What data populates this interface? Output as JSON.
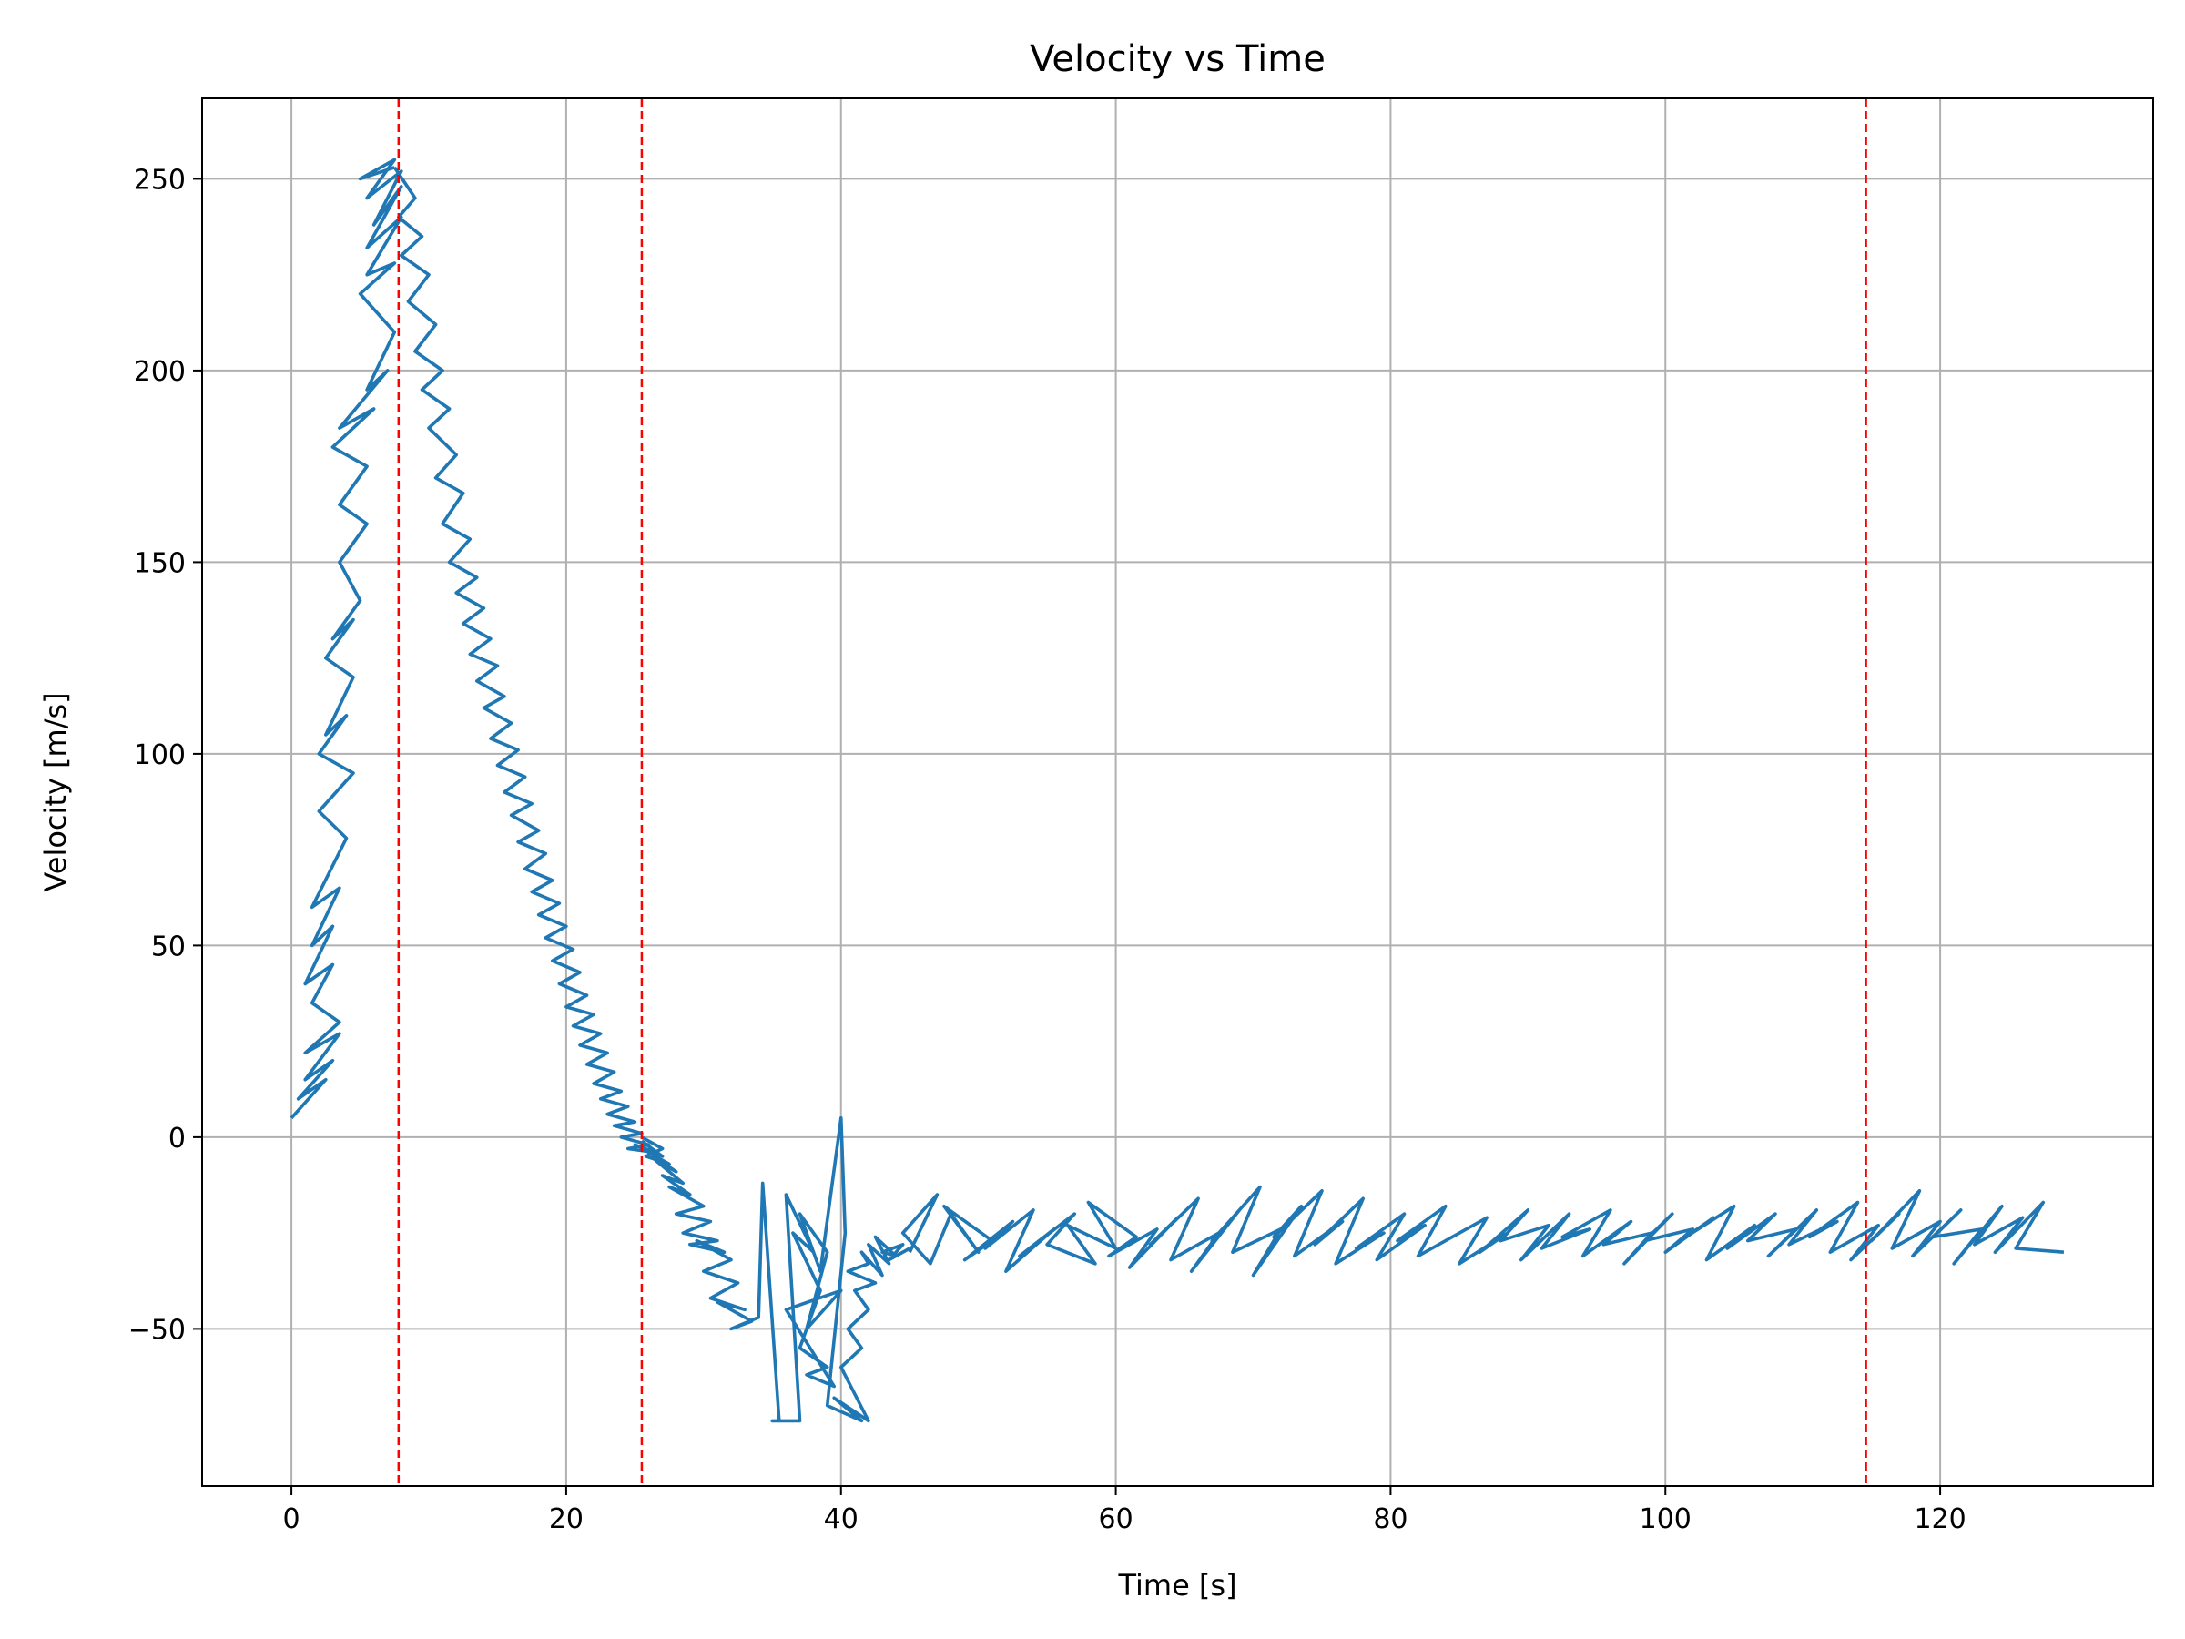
{
  "chart_data": {
    "type": "line",
    "title": "Velocity vs Time",
    "xlabel": "Time [s]",
    "ylabel": "Velocity [m/s]",
    "xlim": [
      -6.5,
      135.5
    ],
    "ylim": [
      -91,
      271
    ],
    "xticks": [
      0,
      20,
      40,
      60,
      80,
      100,
      120
    ],
    "yticks": [
      -50,
      0,
      50,
      100,
      150,
      200,
      250
    ],
    "xtick_labels": [
      "0",
      "20",
      "40",
      "60",
      "80",
      "100",
      "120"
    ],
    "ytick_labels": [
      "−50",
      "0",
      "50",
      "100",
      "150",
      "200",
      "250"
    ],
    "grid": true,
    "line_color": "#1f77b4",
    "vline_color": "#ff0000",
    "vlines": [
      7.8,
      25.5,
      114.6
    ],
    "series": [
      {
        "x": [
          0.0,
          2.5,
          0.5,
          3.0,
          1.0,
          3.5,
          1.0,
          3.5,
          1.5,
          3.0,
          1.0,
          3.0,
          1.5,
          3.5,
          1.5,
          4.0,
          2.0,
          4.5,
          2.0,
          4.0,
          2.5,
          4.5,
          2.5,
          4.5,
          3.0,
          5.0,
          3.5,
          5.5,
          3.5,
          5.5,
          3.0,
          6.0,
          3.5,
          7.0,
          5.5,
          7.5,
          5.0,
          7.5,
          5.5,
          8.0,
          5.5,
          8.0,
          6.0,
          8.0,
          5.5,
          7.5,
          5.0,
          7.5
        ],
        "y": [
          5,
          15,
          10,
          20,
          15,
          27,
          22,
          30,
          35,
          45,
          40,
          55,
          50,
          65,
          60,
          78,
          85,
          95,
          100,
          110,
          105,
          120,
          125,
          135,
          130,
          140,
          150,
          160,
          165,
          175,
          180,
          190,
          185,
          200,
          195,
          210,
          220,
          228,
          225,
          240,
          232,
          248,
          238,
          252,
          245,
          255,
          250,
          253
        ]
      },
      {
        "x": [
          7.5,
          9.0,
          7.8,
          9.5,
          8.0,
          10.0,
          8.5,
          10.5,
          9.0,
          11.0,
          9.5,
          11.5,
          10.0,
          12.0,
          10.5,
          12.5,
          11.0,
          13.0,
          11.5,
          13.5,
          12.0,
          14.0,
          12.5,
          14.5,
          13.0,
          15.0,
          13.5,
          15.5,
          14.0,
          16.0,
          14.5,
          16.5,
          15.0,
          17.0,
          15.5,
          17.5,
          16.0,
          18.0,
          16.5,
          18.5,
          17.0,
          19.0,
          17.5,
          19.5,
          18.0,
          20.0,
          18.5,
          20.5,
          19.0,
          21.0,
          19.5,
          21.5,
          20.0,
          22.0,
          20.5,
          22.5,
          21.0,
          23.0,
          21.5,
          23.5,
          22.0,
          24.0,
          22.5,
          24.5,
          23.0,
          25.0,
          23.5,
          25.5,
          24.0,
          26.0,
          24.5,
          26.5,
          25.0,
          27.0,
          25.5
        ],
        "y": [
          253,
          245,
          240,
          235,
          230,
          225,
          218,
          212,
          205,
          200,
          195,
          190,
          185,
          178,
          172,
          168,
          160,
          156,
          150,
          146,
          142,
          138,
          134,
          130,
          126,
          123,
          119,
          115,
          112,
          108,
          104,
          101,
          97,
          94,
          90,
          87,
          84,
          80,
          77,
          74,
          70,
          67,
          64,
          61,
          58,
          55,
          52,
          49,
          46,
          43,
          40,
          37,
          34,
          32,
          29,
          27,
          24,
          22,
          19,
          17,
          14,
          12,
          10,
          8,
          6,
          4,
          3,
          1,
          0,
          -2,
          -3,
          -4,
          -2,
          -5,
          -1
        ]
      },
      {
        "x": [
          25.5,
          27.0,
          25.8,
          27.5,
          26.0,
          28.0,
          26.5,
          28.5,
          27.0,
          29.0,
          27.5,
          30.0,
          28.0,
          30.5,
          28.5,
          31.0,
          29.0,
          31.5,
          29.5,
          32.0,
          30.0,
          32.5,
          30.5,
          33.0,
          31.0,
          33.5,
          32.0,
          34.0,
          34.3,
          35.5,
          35.0,
          37.0,
          36.0,
          38.0,
          36.5,
          38.5,
          37.0,
          39.0,
          37.5,
          39.5,
          36.0,
          40.0,
          37.5,
          39.0,
          37.0,
          38.5,
          40.0,
          40.3,
          39.0,
          41.5,
          39.5,
          42.0,
          40.0,
          41.5,
          40.5,
          42.0,
          41.0,
          42.5,
          40.5,
          42.0,
          41.5,
          43.0,
          42.0,
          43.5,
          42.5,
          44.0,
          43.0,
          44.5,
          43.5,
          45.0
        ],
        "y": [
          0,
          -3,
          -5,
          -7,
          -4,
          -9,
          -6,
          -12,
          -10,
          -15,
          -13,
          -18,
          -20,
          -22,
          -25,
          -27,
          -28,
          -30,
          -27,
          -32,
          -35,
          -38,
          -42,
          -45,
          -43,
          -48,
          -50,
          -47,
          -12,
          -74,
          -74,
          -74,
          -15,
          -30,
          -25,
          -40,
          -55,
          -60,
          -62,
          -65,
          -45,
          -40,
          -50,
          -30,
          -20,
          -35,
          5,
          -25,
          -70,
          -74,
          -68,
          -74,
          -60,
          -55,
          -50,
          -45,
          -40,
          -38,
          -35,
          -33,
          -30,
          -36,
          -28,
          -33,
          -26,
          -31,
          -30,
          -28,
          -32,
          -29
        ]
      },
      {
        "x": [
          45.0,
          47.0,
          44.5,
          46.5,
          48.0,
          50.0,
          47.5,
          51.0,
          49.0,
          52.5,
          50.5,
          54.0,
          52.0,
          55.5,
          53.0,
          57.0,
          55.0,
          58.5,
          56.5,
          60.0,
          58.0,
          61.5,
          59.5,
          63.0,
          61.0,
          64.5,
          62.5,
          66.0,
          64.0,
          67.5,
          65.5,
          69.0,
          67.0,
          70.5,
          68.5,
          72.0,
          70.0,
          73.5,
          71.5,
          75.0,
          73.0,
          76.5,
          74.5,
          78.0,
          76.0,
          79.5,
          77.5,
          81.0,
          79.0,
          82.5,
          80.5,
          84.0,
          82.0,
          85.5,
          83.5,
          87.0,
          85.0,
          88.5,
          86.5,
          90.0,
          88.0,
          91.5,
          89.5,
          93.0,
          91.0,
          94.5,
          92.5,
          96.0,
          94.0,
          97.5,
          95.5,
          99.0,
          97.0,
          100.5,
          98.5,
          102.0,
          100.0,
          103.5,
          101.5,
          105.0,
          103.0,
          106.5,
          104.5,
          108.0,
          106.0,
          109.5,
          107.5,
          111.0,
          109.0,
          112.5,
          110.5,
          114.0,
          112.0,
          115.5,
          113.5,
          117.0,
          115.0,
          118.5,
          116.5,
          120.0,
          118.0,
          121.5,
          119.5,
          123.0,
          121.0,
          124.5,
          122.5,
          126.0,
          124.0,
          127.5,
          125.5,
          129.0
        ],
        "y": [
          -30,
          -15,
          -25,
          -33,
          -20,
          -30,
          -18,
          -27,
          -32,
          -22,
          -29,
          -19,
          -35,
          -24,
          -31,
          -20,
          -28,
          -33,
          -23,
          -29,
          -17,
          -26,
          -31,
          -24,
          -34,
          -21,
          -28,
          -16,
          -32,
          -25,
          -35,
          -19,
          -27,
          -13,
          -30,
          -24,
          -36,
          -18,
          -26,
          -14,
          -31,
          -22,
          -28,
          -16,
          -33,
          -25,
          -29,
          -20,
          -32,
          -23,
          -27,
          -18,
          -31,
          -24,
          -28,
          -21,
          -33,
          -25,
          -30,
          -19,
          -27,
          -23,
          -32,
          -20,
          -29,
          -24,
          -26,
          -19,
          -31,
          -22,
          -28,
          -25,
          -33,
          -20,
          -27,
          -24,
          -30,
          -21,
          -26,
          -18,
          -32,
          -23,
          -29,
          -20,
          -27,
          -24,
          -31,
          -19,
          -28,
          -22,
          -26,
          -17,
          -30,
          -23,
          -32,
          -20,
          -27,
          -14,
          -29,
          -22,
          -31,
          -19,
          -26,
          -24,
          -33,
          -18,
          -28,
          -21,
          -30,
          -17,
          -29,
          -30
        ]
      }
    ]
  }
}
